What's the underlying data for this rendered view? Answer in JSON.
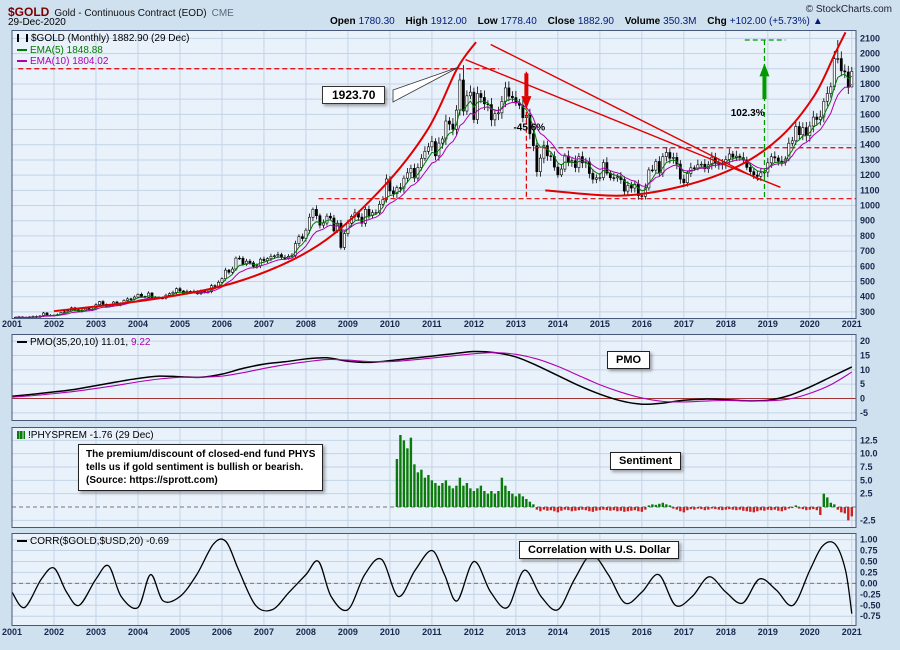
{
  "header": {
    "symbol": "$GOLD",
    "name": "Gold - Continuous Contract (EOD)",
    "exchange": "CME",
    "copyright": "© StockCharts.com",
    "date": "29-Dec-2020",
    "quote": {
      "open_label": "Open",
      "open": "1780.30",
      "high_label": "High",
      "high": "1912.00",
      "low_label": "Low",
      "low": "1778.40",
      "close_label": "Close",
      "close": "1882.90",
      "volume_label": "Volume",
      "volume": "350.3M",
      "chg_label": "Chg",
      "chg": "+102.00 (+5.73%)",
      "chg_arrow": "▲"
    }
  },
  "panels": {
    "main": {
      "legend": "$GOLD (Monthly) 1882.90 (29 Dec)",
      "ema5_label": "EMA(5) 1848.88",
      "ema10_label": "EMA(10) 1804.02",
      "annotations": {
        "peak_label": "1923.70",
        "drop_label": "-45.6%",
        "rise_label": "102.3%"
      }
    },
    "pmo": {
      "legend_prefix": "PMO(35,20,10) 11.01,",
      "legend_signal": "9.22",
      "box_label": "PMO"
    },
    "sentiment": {
      "legend": "!PHYSPREM -1.76 (29 Dec)",
      "box_label": "Sentiment",
      "note_lines": [
        "The premium/discount of closed-end fund PHYS",
        "tells us if gold sentiment is bullish or bearish.",
        "(Source: https://sprott.com)"
      ]
    },
    "corr": {
      "legend": "CORR($GOLD,$USD,20) -0.69",
      "box_label": "Correlation with U.S. Dollar"
    }
  },
  "chart_data": [
    {
      "type": "candlestick",
      "name": "$GOLD Monthly close",
      "x_start_year": 2001,
      "x_step_months": 1,
      "closes": [
        265,
        267,
        257,
        263,
        267,
        270,
        266,
        273,
        293,
        278,
        275,
        279,
        282,
        297,
        301,
        308,
        327,
        313,
        304,
        312,
        323,
        317,
        319,
        348,
        368,
        350,
        336,
        340,
        365,
        346,
        355,
        375,
        386,
        385,
        398,
        416,
        402,
        396,
        424,
        388,
        394,
        392,
        391,
        410,
        420,
        429,
        453,
        438,
        422,
        435,
        428,
        435,
        419,
        437,
        429,
        433,
        473,
        470,
        495,
        519,
        575,
        561,
        582,
        654,
        653,
        613,
        634,
        623,
        599,
        604,
        647,
        638,
        651,
        665,
        669,
        677,
        659,
        651,
        666,
        672,
        750,
        795,
        783,
        838,
        923,
        975,
        933,
        871,
        885,
        930,
        918,
        833,
        884,
        724,
        816,
        884,
        928,
        952,
        924,
        883,
        975,
        934,
        953,
        953,
        1008,
        1040,
        1175,
        1096,
        1078,
        1118,
        1115,
        1180,
        1215,
        1245,
        1181,
        1250,
        1310,
        1357,
        1386,
        1421,
        1327,
        1411,
        1438,
        1556,
        1536,
        1502,
        1628,
        1826,
        1622,
        1722,
        1746,
        1566,
        1737,
        1711,
        1669,
        1664,
        1564,
        1604,
        1610,
        1685,
        1774,
        1719,
        1710,
        1675,
        1660,
        1578,
        1594,
        1472,
        1394,
        1223,
        1312,
        1394,
        1327,
        1323,
        1253,
        1202,
        1240,
        1326,
        1283,
        1295,
        1250,
        1322,
        1281,
        1287,
        1211,
        1173,
        1182,
        1184,
        1283,
        1213,
        1183,
        1182,
        1189,
        1171,
        1095,
        1132,
        1115,
        1141,
        1065,
        1060,
        1116,
        1234,
        1233,
        1290,
        1214,
        1322,
        1349,
        1311,
        1317,
        1273,
        1174,
        1150,
        1211,
        1248,
        1247,
        1268,
        1272,
        1242,
        1268,
        1318,
        1283,
        1271,
        1275,
        1303,
        1339,
        1318,
        1325,
        1315,
        1300,
        1251,
        1223,
        1201,
        1192,
        1215,
        1220,
        1281,
        1321,
        1313,
        1292,
        1283,
        1306,
        1410,
        1426,
        1520,
        1466,
        1513,
        1460,
        1523,
        1582,
        1566,
        1583,
        1686,
        1737,
        1781,
        1966,
        1967,
        1886,
        1879,
        1777,
        1882.9
      ],
      "high_overrides": {
        "128": 1923.7,
        "235": 2089.2
      },
      "last_bar": {
        "open": 1780.3,
        "high": 1912.0,
        "low": 1778.4,
        "close": 1882.9
      },
      "overlays": [
        {
          "name": "EMA(5)",
          "period": 5,
          "color": "#007a00"
        },
        {
          "name": "EMA(10)",
          "period": 10,
          "color": "#b000b0"
        }
      ],
      "ylim": [
        260,
        2155
      ],
      "y_ticks": [
        2100,
        2000,
        1900,
        1800,
        1700,
        1600,
        1500,
        1400,
        1300,
        1200,
        1100,
        1000,
        900,
        800,
        700,
        600,
        500,
        400,
        300
      ],
      "x_ticks": [
        2001,
        2002,
        2003,
        2004,
        2005,
        2006,
        2007,
        2008,
        2009,
        2010,
        2011,
        2012,
        2013,
        2014,
        2015,
        2016,
        2017,
        2018,
        2019,
        2020,
        2021
      ],
      "levels": {
        "resistance": 1900,
        "mid": 1380,
        "support": 1045,
        "peak_2020": 2089
      }
    },
    {
      "type": "line",
      "name": "PMO(35,20,10)",
      "x_start": 2001,
      "x_step": 0.5,
      "series": [
        {
          "name": "PMO",
          "color": "#000000",
          "values": [
            0.8,
            1.5,
            2.3,
            3.2,
            4.5,
            5.8,
            7.0,
            7.8,
            7.6,
            7.4,
            8.5,
            10.5,
            12.0,
            12.8,
            13.8,
            14.2,
            13.0,
            12.6,
            13.2,
            14.0,
            14.8,
            15.6,
            16.4,
            16.0,
            14.5,
            11.5,
            8.0,
            4.5,
            1.5,
            -0.8,
            -2.0,
            -1.6,
            -0.6,
            -0.2,
            -0.4,
            -0.8,
            -0.6,
            1.0,
            4.0,
            7.5,
            11.01
          ]
        },
        {
          "name": "Signal",
          "color": "#b000b0",
          "values": [
            0.5,
            1.0,
            1.7,
            2.5,
            3.5,
            4.6,
            5.8,
            6.8,
            7.4,
            7.4,
            7.8,
            9.0,
            10.5,
            11.8,
            12.8,
            13.6,
            13.4,
            12.9,
            12.9,
            13.4,
            14.1,
            14.9,
            15.6,
            16.0,
            15.4,
            13.8,
            11.2,
            8.0,
            4.8,
            2.2,
            0.2,
            -1.0,
            -1.2,
            -0.9,
            -0.7,
            -0.8,
            -0.8,
            -0.2,
            1.8,
            4.8,
            9.22
          ]
        }
      ],
      "ylim": [
        -7.5,
        22.5
      ],
      "y_ticks": [
        20,
        15,
        10,
        5,
        0,
        -5
      ]
    },
    {
      "type": "bar",
      "name": "!PHYSPREM premium/discount",
      "x_start_year": 2010,
      "x_start_month": 2,
      "x_step_months": 1,
      "values": [
        9,
        13.5,
        12.5,
        11,
        13,
        8,
        6.5,
        7,
        5.5,
        6,
        5,
        4.5,
        4,
        4.5,
        5,
        4,
        3.5,
        4,
        5.5,
        4,
        4.5,
        3.5,
        3,
        3.5,
        4,
        3,
        2.5,
        3,
        2.5,
        3,
        5.5,
        4,
        3,
        2.5,
        2,
        2.5,
        2,
        1.5,
        1,
        0.5,
        -0.5,
        -0.8,
        -0.5,
        -0.7,
        -0.6,
        -0.8,
        -1,
        -0.7,
        -0.5,
        -0.6,
        -0.8,
        -0.7,
        -0.6,
        -0.5,
        -0.6,
        -0.8,
        -0.9,
        -0.7,
        -0.6,
        -0.5,
        -0.6,
        -0.7,
        -0.6,
        -0.8,
        -0.7,
        -0.9,
        -0.8,
        -0.7,
        -0.6,
        -0.8,
        -0.9,
        -0.5,
        0.3,
        0.5,
        0.4,
        0.6,
        0.8,
        0.5,
        0.3,
        -0.3,
        -0.5,
        -0.8,
        -1.0,
        -0.6,
        -0.4,
        -0.5,
        -0.3,
        -0.4,
        -0.6,
        -0.5,
        -0.3,
        -0.4,
        -0.5,
        -0.6,
        -0.5,
        -0.4,
        -0.5,
        -0.6,
        -0.5,
        -0.7,
        -0.8,
        -0.9,
        -1.0,
        -0.8,
        -0.6,
        -0.7,
        -0.5,
        -0.6,
        -0.5,
        -0.7,
        -0.8,
        -0.6,
        -0.3,
        -0.2,
        0.3,
        -0.3,
        -0.4,
        -0.6,
        -0.5,
        -0.4,
        -0.6,
        -1.5,
        2.5,
        1.8,
        0.8,
        0.5,
        -0.5,
        -1.0,
        -1.2,
        -2.5,
        -1.76
      ],
      "ylim": [
        -3.75,
        15
      ],
      "y_ticks": [
        12.5,
        10,
        7.5,
        5,
        2.5,
        -2.5
      ],
      "y_tick_labels": [
        "12.5",
        "10.0",
        "7.5",
        "5.0",
        "2.5",
        "-2.5"
      ],
      "pos_color": "#0a7a0a",
      "neg_color": "#cc2222"
    },
    {
      "type": "line",
      "name": "20-month correlation $GOLD vs $USD",
      "points": [
        [
          2001.0,
          -0.2
        ],
        [
          2001.3,
          -0.55
        ],
        [
          2001.7,
          0.1
        ],
        [
          2002.0,
          0.35
        ],
        [
          2002.3,
          -0.2
        ],
        [
          2002.6,
          -0.5
        ],
        [
          2003.0,
          0.1
        ],
        [
          2003.3,
          0.4
        ],
        [
          2003.6,
          -0.3
        ],
        [
          2004.0,
          -0.55
        ],
        [
          2004.3,
          0.2
        ],
        [
          2004.6,
          -0.4
        ],
        [
          2005.0,
          -0.3
        ],
        [
          2005.4,
          0.2
        ],
        [
          2005.8,
          0.9
        ],
        [
          2006.1,
          0.95
        ],
        [
          2006.4,
          0.3
        ],
        [
          2006.8,
          -0.5
        ],
        [
          2007.2,
          -0.6
        ],
        [
          2007.6,
          -0.2
        ],
        [
          2008.0,
          0.2
        ],
        [
          2008.3,
          0.5
        ],
        [
          2008.6,
          -0.3
        ],
        [
          2009.0,
          -0.6
        ],
        [
          2009.4,
          0.2
        ],
        [
          2009.8,
          0.55
        ],
        [
          2010.2,
          -0.3
        ],
        [
          2010.6,
          0.3
        ],
        [
          2011.0,
          0.75
        ],
        [
          2011.3,
          0.2
        ],
        [
          2011.6,
          -0.4
        ],
        [
          2012.0,
          0.5
        ],
        [
          2012.4,
          -0.2
        ],
        [
          2012.8,
          -0.55
        ],
        [
          2013.2,
          0.3
        ],
        [
          2013.6,
          -0.3
        ],
        [
          2014.0,
          -0.6
        ],
        [
          2014.4,
          0.1
        ],
        [
          2014.8,
          0.65
        ],
        [
          2015.2,
          0.2
        ],
        [
          2015.6,
          -0.45
        ],
        [
          2016.0,
          -0.2
        ],
        [
          2016.4,
          0.2
        ],
        [
          2016.8,
          -0.5
        ],
        [
          2017.2,
          -0.3
        ],
        [
          2017.6,
          0.15
        ],
        [
          2018.0,
          -0.2
        ],
        [
          2018.4,
          -0.45
        ],
        [
          2018.8,
          0.1
        ],
        [
          2019.2,
          -0.15
        ],
        [
          2019.6,
          -0.5
        ],
        [
          2020.0,
          0.3
        ],
        [
          2020.3,
          0.85
        ],
        [
          2020.6,
          0.9
        ],
        [
          2020.85,
          0.3
        ],
        [
          2021.0,
          -0.69
        ]
      ],
      "ylim": [
        -0.95,
        1.15
      ],
      "y_ticks": [
        1,
        0.75,
        0.5,
        0.25,
        0,
        -0.25,
        -0.5,
        -0.75
      ],
      "y_tick_labels": [
        "1.00",
        "0.75",
        "0.50",
        "0.25",
        "0.00",
        "-0.25",
        "-0.50",
        "-0.75"
      ]
    }
  ]
}
